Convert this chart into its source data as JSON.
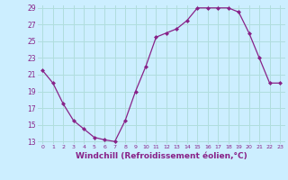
{
  "x": [
    0,
    1,
    2,
    3,
    4,
    5,
    6,
    7,
    8,
    9,
    10,
    11,
    12,
    13,
    14,
    15,
    16,
    17,
    18,
    19,
    20,
    21,
    22,
    23
  ],
  "y": [
    21.5,
    20.0,
    17.5,
    15.5,
    14.5,
    13.5,
    13.2,
    13.0,
    15.5,
    19.0,
    22.0,
    25.5,
    26.0,
    26.5,
    27.5,
    29.0,
    29.0,
    29.0,
    29.0,
    28.5,
    26.0,
    23.0,
    20.0,
    20.0
  ],
  "line_color": "#882288",
  "marker": "D",
  "markersize": 2.0,
  "linewidth": 0.9,
  "xlabel": "Windchill (Refroidissement éolien,°C)",
  "xlabel_fontsize": 6.5,
  "background_color": "#cceeff",
  "grid_color": "#aadddd",
  "tick_label_color": "#882288",
  "axis_label_color": "#882288",
  "ylim": [
    13,
    29
  ],
  "xlim": [
    -0.5,
    23.5
  ],
  "yticks": [
    13,
    15,
    17,
    19,
    21,
    23,
    25,
    27,
    29
  ],
  "xticks": [
    0,
    1,
    2,
    3,
    4,
    5,
    6,
    7,
    8,
    9,
    10,
    11,
    12,
    13,
    14,
    15,
    16,
    17,
    18,
    19,
    20,
    21,
    22,
    23
  ]
}
